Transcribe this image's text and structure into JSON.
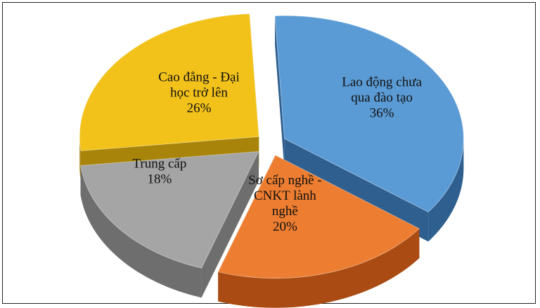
{
  "chart_data": {
    "type": "pie",
    "style": "3d-exploded",
    "title": "",
    "slices": [
      {
        "label_lines": [
          "Lao động chưa",
          "qua đào tạo"
        ],
        "value_text": "36%",
        "value": 36,
        "color": "#5B9BD5",
        "dark": "#2E5F8F"
      },
      {
        "label_lines": [
          "Sơ cấp nghề -",
          "CNKT lành",
          "nghề"
        ],
        "value_text": "20%",
        "value": 20,
        "color": "#ED7D31",
        "dark": "#A94B12"
      },
      {
        "label_lines": [
          "Trung cấp"
        ],
        "value_text": "18%",
        "value": 18,
        "color": "#A5A5A5",
        "dark": "#6E6E6E"
      },
      {
        "label_lines": [
          "Cao đẳng - Đại",
          "học trở lên"
        ],
        "value_text": "26%",
        "value": 26,
        "color": "#F2C21B",
        "dark": "#A8850A"
      }
    ],
    "legend": "none",
    "grid": false
  }
}
